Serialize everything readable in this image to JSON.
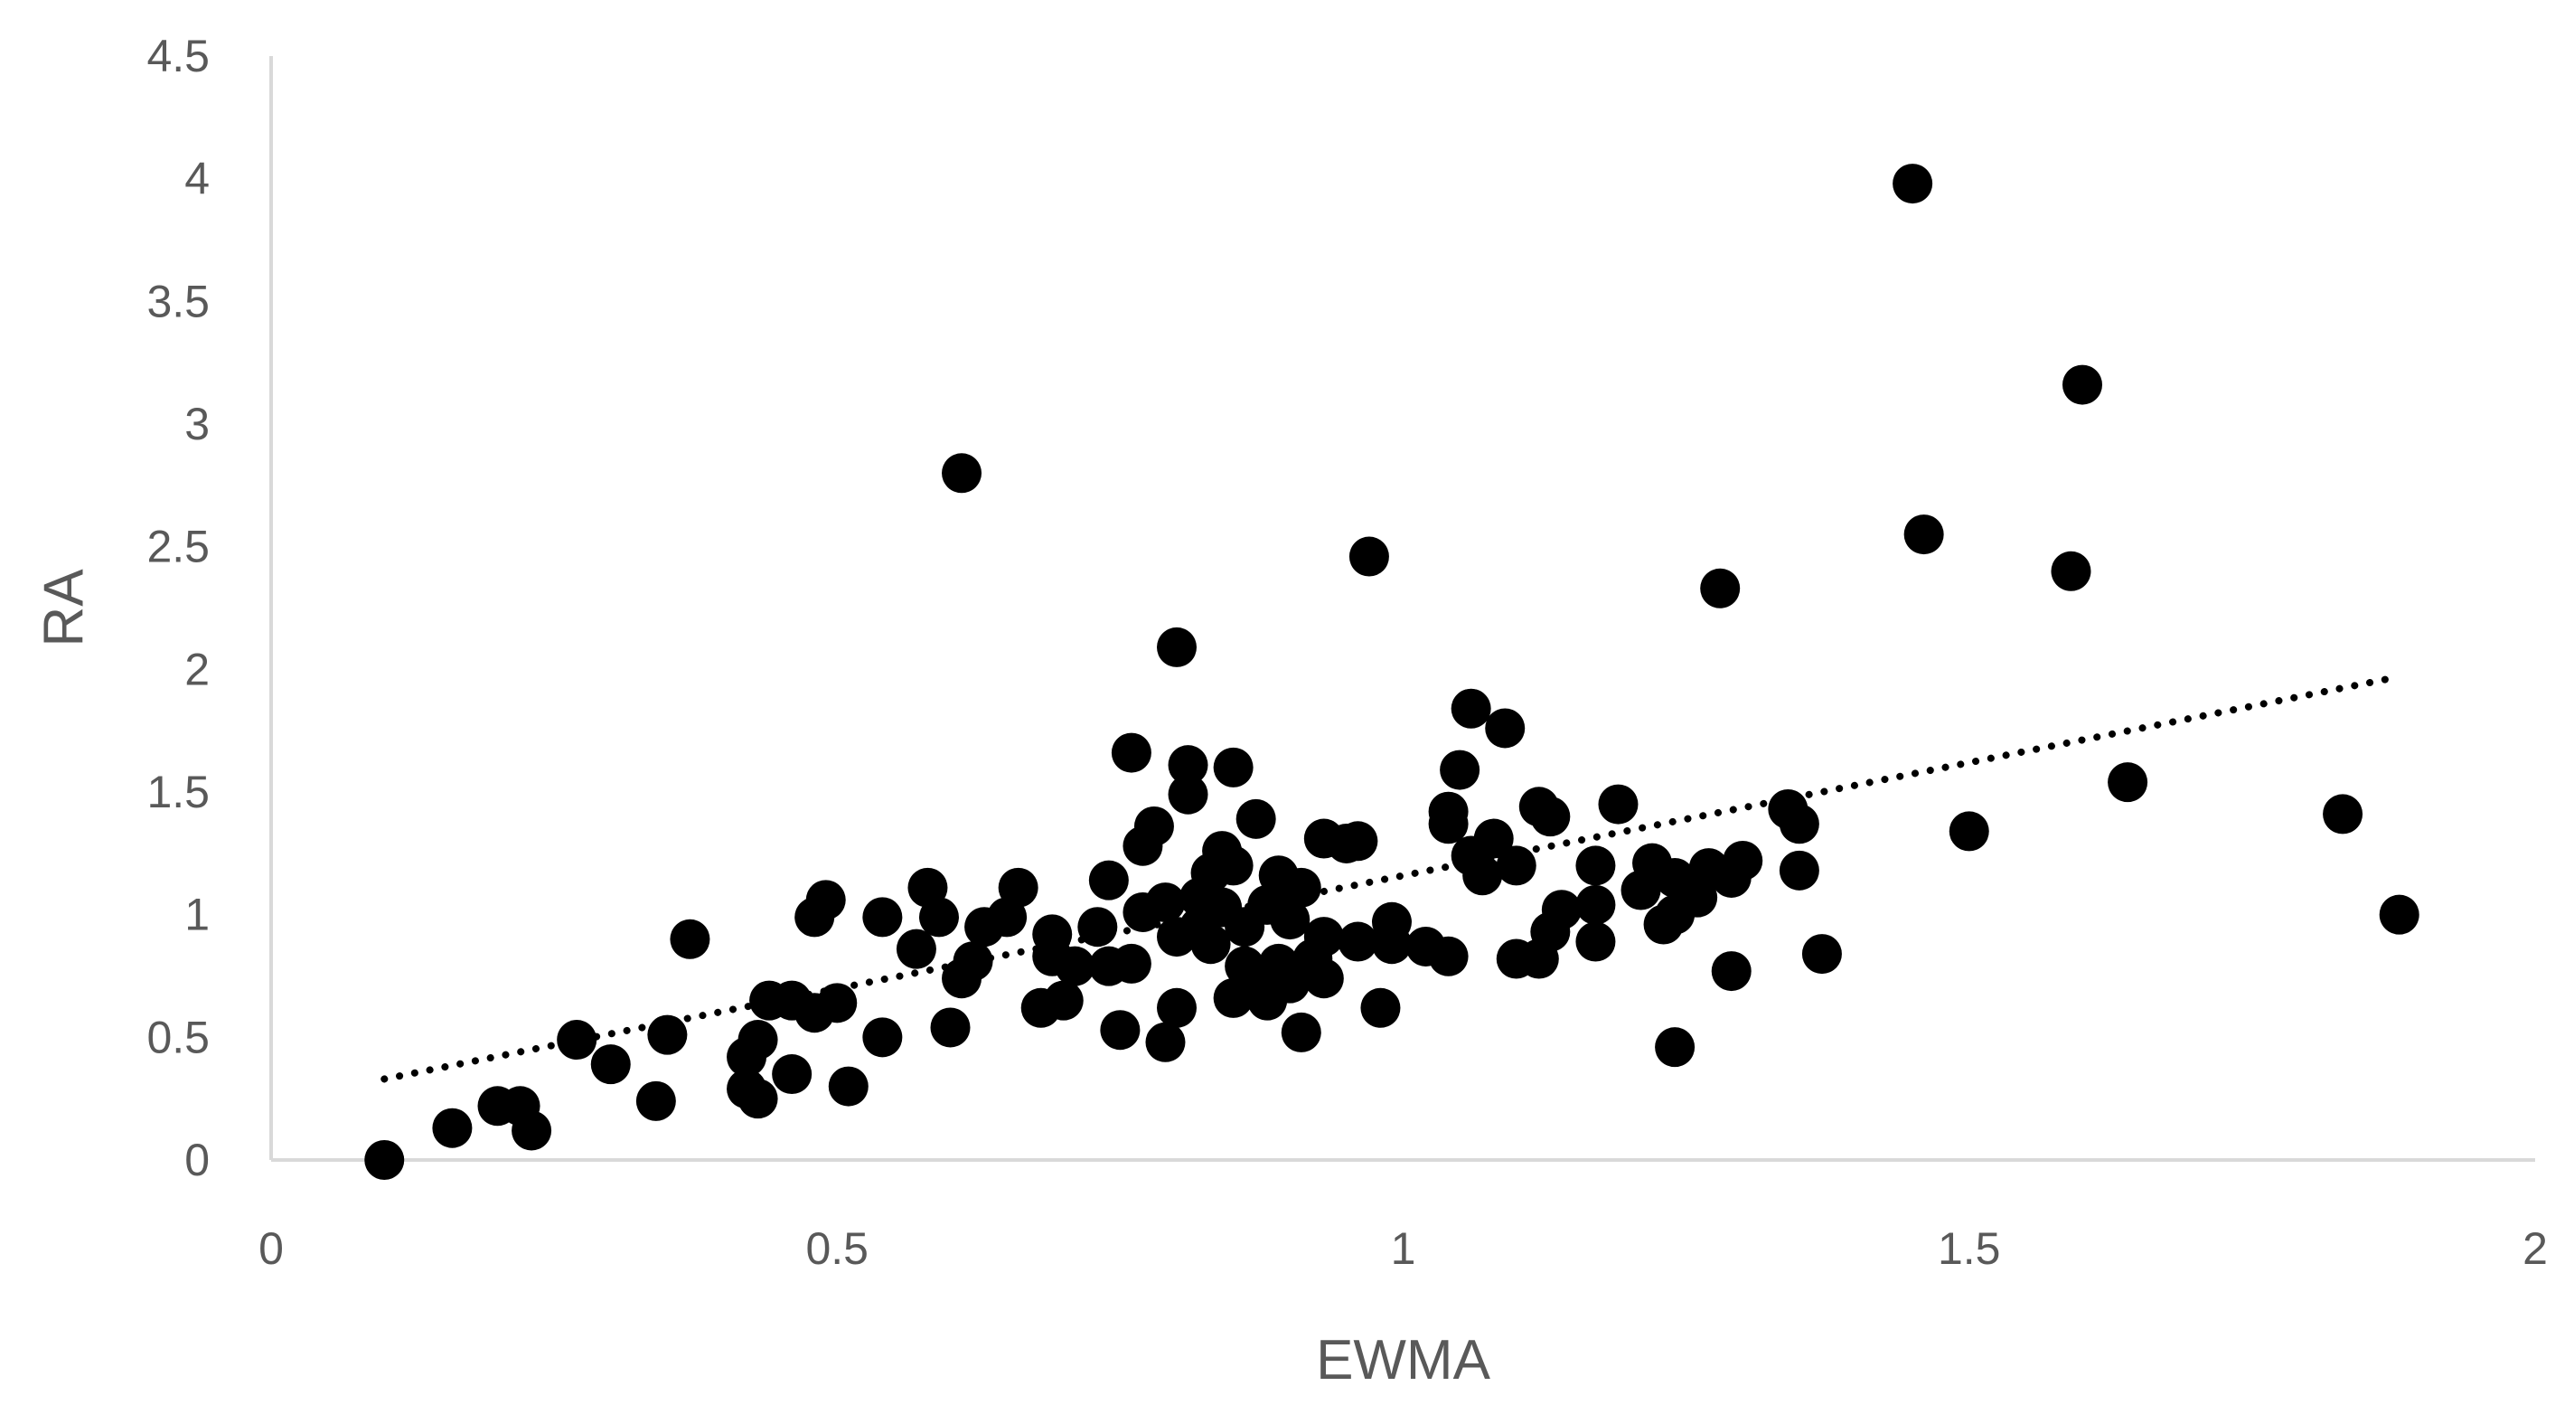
{
  "chart_data": {
    "type": "scatter",
    "title": "",
    "xlabel": "EWMA",
    "ylabel": "RA",
    "xlim": [
      0,
      2
    ],
    "ylim": [
      0,
      4.5
    ],
    "x_ticks": [
      "0",
      "0.5",
      "1",
      "1.5",
      "2"
    ],
    "y_ticks": [
      "0",
      "0.5",
      "1",
      "1.5",
      "2",
      "2.5",
      "3",
      "3.5",
      "4",
      "4.5"
    ],
    "grid": false,
    "legend": "none",
    "colors": {
      "points": "#000000",
      "axis": "#d9d9d9",
      "text": "#595959"
    },
    "trendline": {
      "style": "dotted",
      "x": [
        0.1,
        1.88
      ],
      "y": [
        0.33,
        1.97
      ]
    },
    "points": [
      [
        0.1,
        0.0
      ],
      [
        0.16,
        0.13
      ],
      [
        0.2,
        0.22
      ],
      [
        0.22,
        0.22
      ],
      [
        0.23,
        0.12
      ],
      [
        0.27,
        0.49
      ],
      [
        0.3,
        0.39
      ],
      [
        0.34,
        0.24
      ],
      [
        0.35,
        0.51
      ],
      [
        0.37,
        0.9
      ],
      [
        0.42,
        0.29
      ],
      [
        0.42,
        0.42
      ],
      [
        0.43,
        0.49
      ],
      [
        0.43,
        0.25
      ],
      [
        0.44,
        0.65
      ],
      [
        0.46,
        0.35
      ],
      [
        0.46,
        0.65
      ],
      [
        0.48,
        0.99
      ],
      [
        0.48,
        0.6
      ],
      [
        0.49,
        1.06
      ],
      [
        0.5,
        0.64
      ],
      [
        0.51,
        0.3
      ],
      [
        0.54,
        0.99
      ],
      [
        0.54,
        0.5
      ],
      [
        0.57,
        0.86
      ],
      [
        0.58,
        1.11
      ],
      [
        0.59,
        0.99
      ],
      [
        0.6,
        0.54
      ],
      [
        0.61,
        2.8
      ],
      [
        0.61,
        0.74
      ],
      [
        0.62,
        0.81
      ],
      [
        0.63,
        0.95
      ],
      [
        0.65,
        0.99
      ],
      [
        0.66,
        1.11
      ],
      [
        0.68,
        0.62
      ],
      [
        0.69,
        0.92
      ],
      [
        0.69,
        0.83
      ],
      [
        0.7,
        0.65
      ],
      [
        0.71,
        0.79
      ],
      [
        0.73,
        0.95
      ],
      [
        0.74,
        1.14
      ],
      [
        0.74,
        0.79
      ],
      [
        0.75,
        0.53
      ],
      [
        0.76,
        0.8
      ],
      [
        0.76,
        1.66
      ],
      [
        0.77,
        1.28
      ],
      [
        0.77,
        1.01
      ],
      [
        0.78,
        1.36
      ],
      [
        0.79,
        1.05
      ],
      [
        0.79,
        0.48
      ],
      [
        0.8,
        0.62
      ],
      [
        0.8,
        2.09
      ],
      [
        0.8,
        0.91
      ],
      [
        0.81,
        1.61
      ],
      [
        0.81,
        1.49
      ],
      [
        0.82,
        1.07
      ],
      [
        0.82,
        0.95
      ],
      [
        0.83,
        0.88
      ],
      [
        0.83,
        1.17
      ],
      [
        0.84,
        1.26
      ],
      [
        0.84,
        1.03
      ],
      [
        0.85,
        1.2
      ],
      [
        0.85,
        1.6
      ],
      [
        0.85,
        0.66
      ],
      [
        0.86,
        0.95
      ],
      [
        0.86,
        0.79
      ],
      [
        0.87,
        1.39
      ],
      [
        0.87,
        0.69
      ],
      [
        0.88,
        1.04
      ],
      [
        0.88,
        0.65
      ],
      [
        0.89,
        1.16
      ],
      [
        0.89,
        0.8
      ],
      [
        0.9,
        0.98
      ],
      [
        0.9,
        0.72
      ],
      [
        0.91,
        0.52
      ],
      [
        0.91,
        1.11
      ],
      [
        0.92,
        0.82
      ],
      [
        0.93,
        0.74
      ],
      [
        0.93,
        0.91
      ],
      [
        0.93,
        1.31
      ],
      [
        0.95,
        1.29
      ],
      [
        0.96,
        1.3
      ],
      [
        0.96,
        0.89
      ],
      [
        0.97,
        2.46
      ],
      [
        0.98,
        0.62
      ],
      [
        0.99,
        0.97
      ],
      [
        0.99,
        0.88
      ],
      [
        1.02,
        0.87
      ],
      [
        1.04,
        1.42
      ],
      [
        1.04,
        1.37
      ],
      [
        1.04,
        0.83
      ],
      [
        1.05,
        1.59
      ],
      [
        1.06,
        1.84
      ],
      [
        1.06,
        1.24
      ],
      [
        1.07,
        1.16
      ],
      [
        1.08,
        1.31
      ],
      [
        1.09,
        1.76
      ],
      [
        1.1,
        1.2
      ],
      [
        1.1,
        0.82
      ],
      [
        1.12,
        0.82
      ],
      [
        1.12,
        1.44
      ],
      [
        1.13,
        1.4
      ],
      [
        1.13,
        0.93
      ],
      [
        1.14,
        1.02
      ],
      [
        1.17,
        1.2
      ],
      [
        1.17,
        1.04
      ],
      [
        1.17,
        0.89
      ],
      [
        1.19,
        1.45
      ],
      [
        1.21,
        1.1
      ],
      [
        1.22,
        1.21
      ],
      [
        1.23,
        0.96
      ],
      [
        1.24,
        1.15
      ],
      [
        1.24,
        1.0
      ],
      [
        1.24,
        0.46
      ],
      [
        1.26,
        1.07
      ],
      [
        1.27,
        1.19
      ],
      [
        1.28,
        2.33
      ],
      [
        1.29,
        0.77
      ],
      [
        1.29,
        1.15
      ],
      [
        1.3,
        1.22
      ],
      [
        1.34,
        1.43
      ],
      [
        1.35,
        1.37
      ],
      [
        1.35,
        1.18
      ],
      [
        1.37,
        0.84
      ],
      [
        1.45,
        3.98
      ],
      [
        1.46,
        2.55
      ],
      [
        1.5,
        1.34
      ],
      [
        1.59,
        2.4
      ],
      [
        1.6,
        3.16
      ],
      [
        1.64,
        1.54
      ],
      [
        1.83,
        1.41
      ],
      [
        1.88,
        1.0
      ]
    ]
  }
}
